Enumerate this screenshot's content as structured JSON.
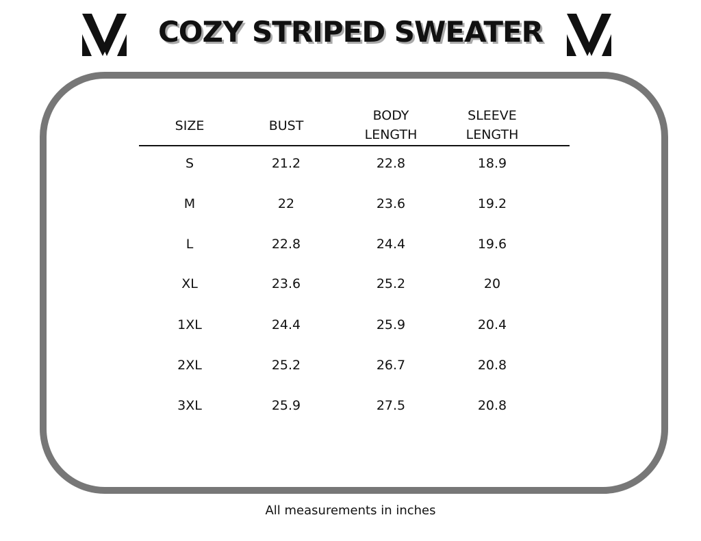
{
  "header": {
    "title": "COZY STRIPED SWEATER"
  },
  "table": {
    "columns": [
      "SIZE",
      "BUST",
      "BODY LENGTH",
      "SLEEVE LENGTH"
    ],
    "rows": [
      [
        "S",
        "21.2",
        "22.8",
        "18.9"
      ],
      [
        "M",
        "22",
        "23.6",
        "19.2"
      ],
      [
        "L",
        "22.8",
        "24.4",
        "19.6"
      ],
      [
        "XL",
        "23.6",
        "25.2",
        "20"
      ],
      [
        "1XL",
        "24.4",
        "25.9",
        "20.4"
      ],
      [
        "2XL",
        "25.2",
        "26.7",
        "20.8"
      ],
      [
        "3XL",
        "25.9",
        "27.5",
        "20.8"
      ]
    ]
  },
  "footer": {
    "note": "All measurements in inches"
  }
}
